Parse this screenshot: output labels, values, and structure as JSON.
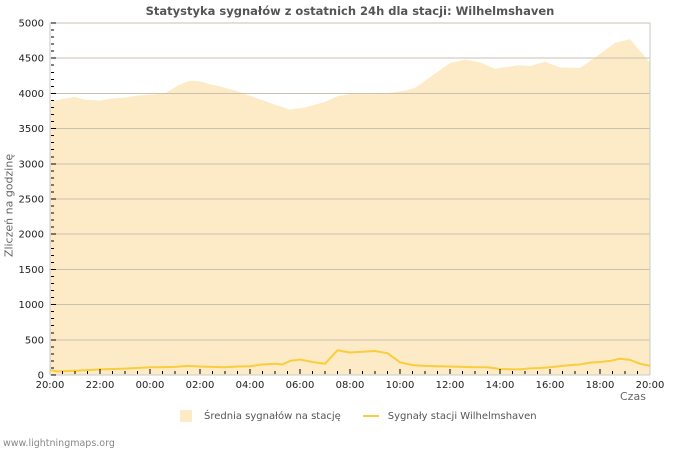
{
  "title": "Statystyka sygnałów z ostatnich 24h dla stacji: Wilhelmshaven",
  "footer": "www.lightningmaps.org",
  "colors": {
    "area_fill": "#fdebc8",
    "line": "#f9cd3c",
    "grid": "#c9c2b0",
    "axis": "#c8c8c8"
  },
  "legend": {
    "items": [
      {
        "label": "Średnia sygnałów na stację",
        "type": "area"
      },
      {
        "label": "Sygnały stacji Wilhelmshaven",
        "type": "line"
      }
    ]
  },
  "chart_data": {
    "type": "area",
    "title": "Statystyka sygnałów z ostatnich 24h dla stacji: Wilhelmshaven",
    "xlabel": "Czas",
    "ylabel": "Zliczeń na godzinę",
    "ylim": [
      0,
      5000
    ],
    "yticks": [
      0,
      500,
      1000,
      1500,
      2000,
      2500,
      3000,
      3500,
      4000,
      4500,
      5000
    ],
    "xticks": [
      "20:00",
      "22:00",
      "00:00",
      "02:00",
      "04:00",
      "06:00",
      "08:00",
      "10:00",
      "12:00",
      "14:00",
      "16:00",
      "18:00",
      "20:00"
    ],
    "grid": true,
    "legend_position": "bottom",
    "x_hours": [
      0,
      0.5,
      1,
      1.4,
      2,
      2.5,
      3,
      3.5,
      4,
      4.6,
      5.2,
      5.6,
      6,
      6.4,
      6.8,
      7.5,
      8.2,
      9,
      9.6,
      10.2,
      10.6,
      11,
      11.5,
      12,
      12.8,
      13.2,
      13.6,
      14.2,
      14.6,
      15,
      15.6,
      16,
      16.6,
      17.2,
      17.8,
      18.2,
      18.7,
      19.2,
      19.8,
      20.4,
      21.2,
      22,
      22.6,
      23.2,
      23.8
    ],
    "series": [
      {
        "name": "Średnia sygnałów na stację",
        "type": "area",
        "x": [
          0,
          0.5,
          1,
          1.4,
          2,
          2.5,
          3,
          3.5,
          4,
          4.6,
          5.2,
          5.6,
          6,
          6.4,
          6.8,
          7.5,
          8.2,
          9,
          9.6,
          10.2,
          10.6,
          11,
          11.5,
          12,
          12.8,
          13.2,
          13.6,
          14.2,
          14.6,
          15,
          15.6,
          16,
          16.6,
          17.2,
          17.8,
          18.2,
          18.7,
          19.2,
          19.8,
          20.4,
          21.2,
          22,
          22.6,
          23.2,
          23.8
        ],
        "values": [
          3880,
          3920,
          3950,
          3910,
          3900,
          3930,
          3940,
          3970,
          3980,
          4000,
          4130,
          4180,
          4170,
          4130,
          4100,
          4030,
          3940,
          3840,
          3770,
          3800,
          3840,
          3880,
          3960,
          3990,
          3990,
          4000,
          4010,
          4040,
          4080,
          4180,
          4330,
          4430,
          4480,
          4440,
          4350,
          4370,
          4400,
          4390,
          4450,
          4370,
          4360,
          4560,
          4720,
          4770,
          4520
        ]
      },
      {
        "name": "Sygnały stacji Wilhelmshaven",
        "type": "line",
        "x": [
          0,
          0.3,
          0.6,
          1,
          1.5,
          2,
          2.5,
          3,
          3.5,
          4,
          4.5,
          5,
          5.5,
          6,
          6.5,
          7,
          7.5,
          8,
          8.5,
          9,
          9.3,
          9.6,
          10,
          10.5,
          11,
          11.5,
          12,
          12.5,
          13,
          13.5,
          14,
          14.5,
          15,
          15.5,
          16,
          16.5,
          17,
          17.5,
          18,
          18.5,
          18.8,
          19.2,
          19.6,
          20,
          20.4,
          20.8,
          21.2,
          21.6,
          22,
          22.4,
          22.8,
          23.2,
          23.6,
          24
        ],
        "values": [
          70,
          50,
          55,
          60,
          70,
          80,
          85,
          90,
          100,
          110,
          110,
          115,
          130,
          120,
          115,
          110,
          120,
          125,
          150,
          160,
          150,
          200,
          220,
          185,
          160,
          350,
          320,
          330,
          340,
          310,
          180,
          140,
          130,
          125,
          120,
          115,
          110,
          110,
          85,
          80,
          80,
          95,
          100,
          110,
          125,
          140,
          150,
          175,
          185,
          200,
          230,
          215,
          160,
          130
        ]
      }
    ]
  }
}
